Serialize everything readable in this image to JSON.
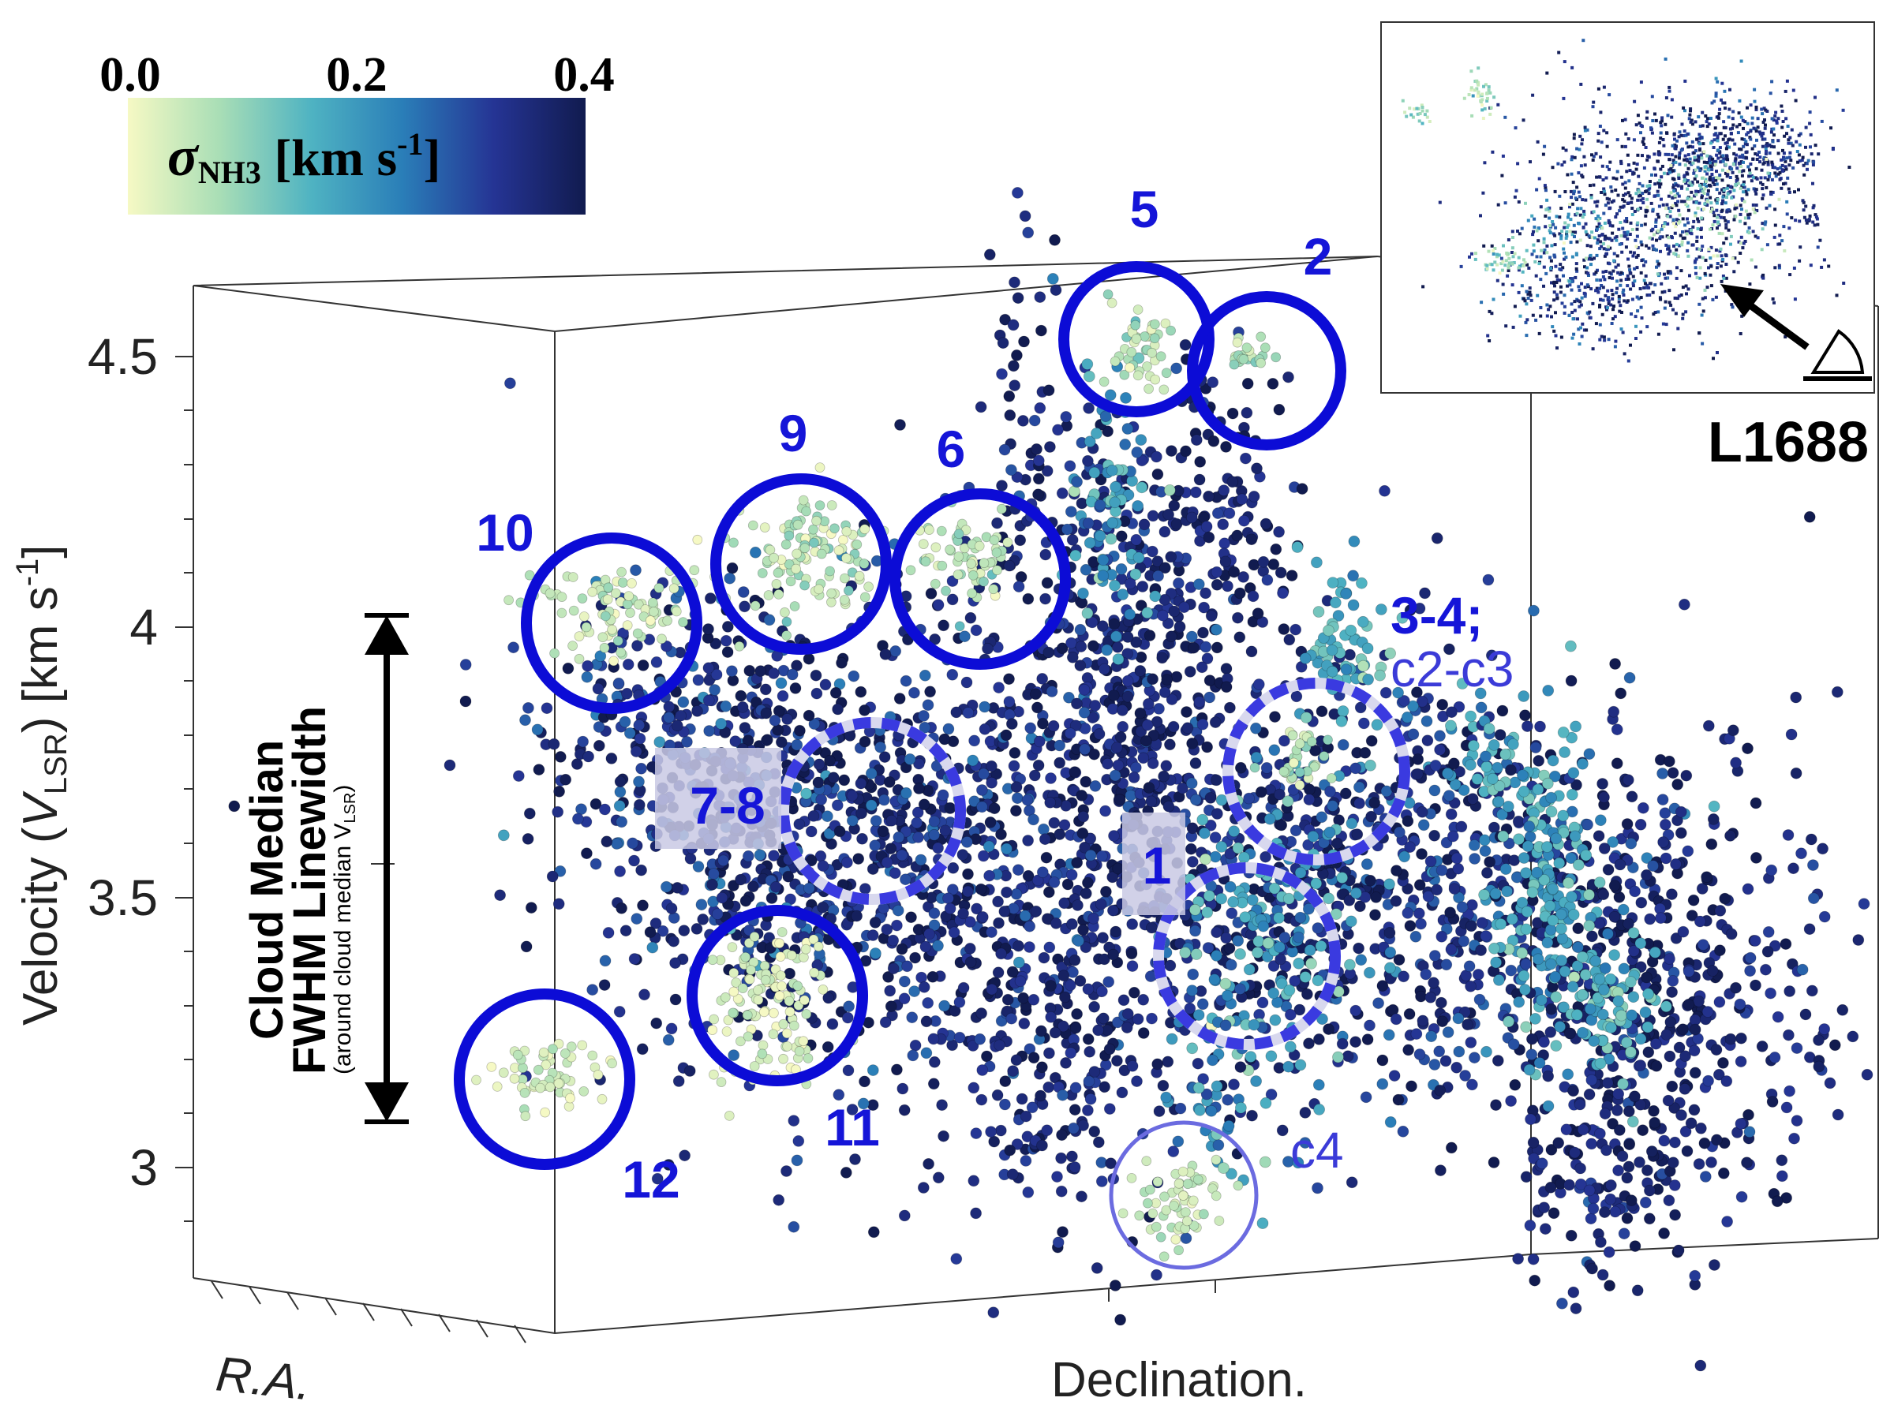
{
  "colorbar": {
    "ticks": [
      "0.0",
      "0.2",
      "0.4"
    ],
    "label_sigma": "σ",
    "label_sub": "NH3",
    "label_units": " [km s",
    "label_exp": "-1",
    "label_close": "]",
    "stops": [
      "#f6f9c4",
      "#a9deb6",
      "#4fb3c2",
      "#2a7eb8",
      "#253494",
      "#111b4f"
    ]
  },
  "axes": {
    "y_ticks": [
      "4.5",
      "4",
      "3.5",
      "3"
    ],
    "y_title_prefix": "Velocity (",
    "y_title_V": "V",
    "y_title_sub": "LSR",
    "y_title_suffix": ") [km s",
    "y_title_exp": "-1",
    "y_title_close": "]",
    "x_title": "Declination.",
    "z_title": "R.A."
  },
  "linewidth_annotation": {
    "line1": "Cloud Median",
    "line2": "FWHM Linewidth",
    "line3": "(around cloud median V",
    "line3_sub": "LSR",
    "line3_close": ")"
  },
  "inset": {
    "region_label": "L1688"
  },
  "chart_data": {
    "type": "scatter",
    "title": "",
    "xlabel": "Declination.",
    "ylabel": "Velocity (VLSR) [km s-1]",
    "zlabel": "R.A.",
    "ylim": [
      2.8,
      4.65
    ],
    "y_ticks": [
      3,
      3.5,
      4,
      4.5
    ],
    "colorbar": {
      "label": "σNH3 [km s-1]",
      "range": [
        0.0,
        0.4
      ],
      "ticks": [
        0.0,
        0.2,
        0.4
      ]
    },
    "cloud_median_fwhm_linewidth": {
      "center": 3.55,
      "low": 3.08,
      "high": 4.02
    },
    "core_labels": [
      {
        "label": "5",
        "style": "solid",
        "velocity": 4.52
      },
      {
        "label": "2",
        "style": "solid",
        "velocity": 4.49
      },
      {
        "label": "9",
        "style": "solid",
        "velocity": 4.12
      },
      {
        "label": "6",
        "style": "solid",
        "velocity": 4.1
      },
      {
        "label": "10",
        "style": "solid",
        "velocity": 4.02
      },
      {
        "label": "11",
        "style": "solid",
        "velocity": 3.33
      },
      {
        "label": "12",
        "style": "solid",
        "velocity": 3.18
      },
      {
        "label": "7-8",
        "style": "dashed",
        "velocity": 3.67
      },
      {
        "label": "1",
        "style": "dashed",
        "velocity": 3.38
      },
      {
        "label": "3-4;",
        "sublabel": "c2-c3",
        "style": "dashed",
        "velocity": 3.72
      },
      {
        "label": "c4",
        "style": "thin",
        "velocity": 2.92
      }
    ]
  }
}
